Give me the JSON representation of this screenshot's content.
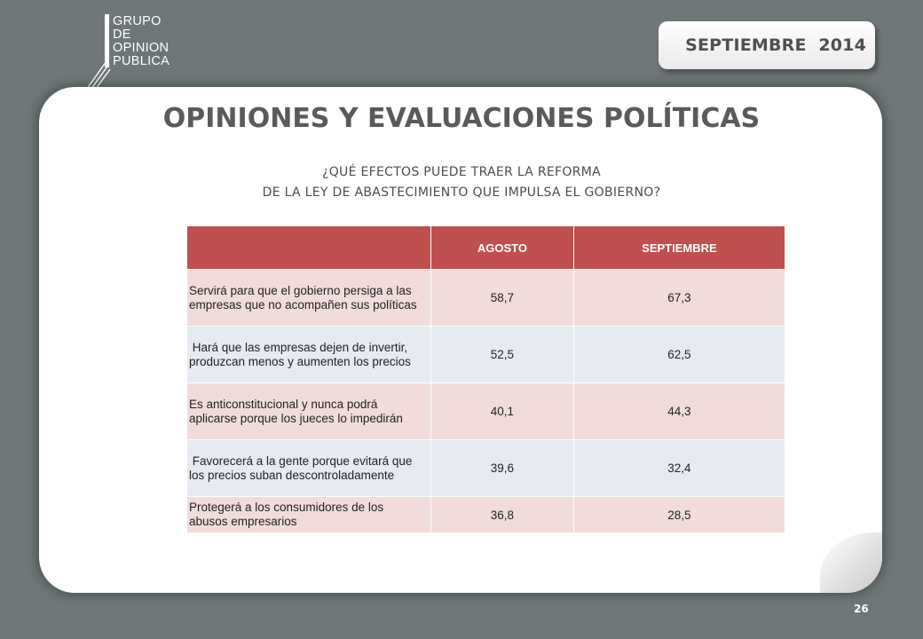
{
  "logo": {
    "lines": [
      "GRUPO",
      "DE",
      "OPINION",
      "PUBLICA"
    ]
  },
  "date_badge": "SEPTIEMBRE  2014",
  "title": "OPINIONES Y EVALUACIONES POLÍTICAS",
  "question": {
    "line1": "¿QUÉ EFECTOS PUEDE TRAER LA REFORMA",
    "line2": "DE LA LEY DE ABASTECIMIENTO QUE IMPULSA EL GOBIERNO?"
  },
  "table": {
    "headers": [
      "",
      "AGOSTO",
      "SEPTIEMBRE"
    ],
    "rows": [
      {
        "label": "Servirá para que el gobierno persiga a las empresas que no acompañen sus políticas",
        "agosto": "58,7",
        "septiembre": "67,3"
      },
      {
        "label": " Hará que las empresas dejen de invertir, produzcan menos y aumenten los precios",
        "agosto": "52,5",
        "septiembre": "62,5"
      },
      {
        "label": "Es anticonstitucional y nunca podrá aplicarse porque los jueces lo impedirán",
        "agosto": "40,1",
        "septiembre": "44,3"
      },
      {
        "label": " Favorecerá a la gente porque evitará que los precios suban descontroladamente",
        "agosto": "39,6",
        "septiembre": "32,4"
      },
      {
        "label": "Protegerá a los consumidores de los abusos empresarios",
        "agosto": "36,8",
        "septiembre": "28,5"
      }
    ]
  },
  "colors": {
    "background": "#6e7677",
    "header": "#c0504d",
    "row_pink": "#f2dcdb",
    "row_blue": "#e6eaf1"
  },
  "page_number": "26"
}
